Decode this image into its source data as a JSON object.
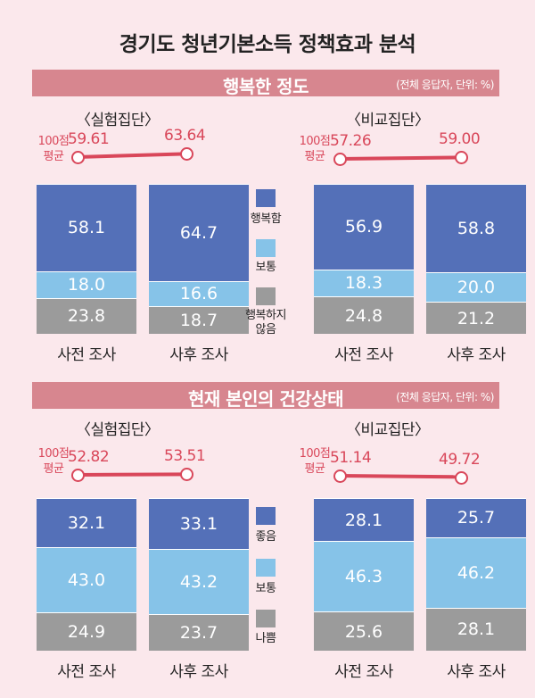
{
  "title": "경기도 청년기본소득 정책효과 분석",
  "unit": "(전체 응답자, 단위: %)",
  "avg_label_top": "100점",
  "avg_label_bottom": "평균",
  "colors": {
    "top": "#5470b8",
    "mid": "#86c3e8",
    "bottom": "#9b9b9b",
    "accent": "#d9475a"
  },
  "chart_data": [
    {
      "type": "bar",
      "title": "행복한 정도",
      "categories": [
        "사전 조사",
        "사후 조사"
      ],
      "legend": [
        "행복함",
        "보통",
        "행복하지\n않음"
      ],
      "groups": [
        {
          "name": "〈실험집단〉",
          "averages": [
            "59.61",
            "63.64"
          ],
          "series": [
            {
              "name": "행복함",
              "values": [
                "58.1",
                "64.7"
              ]
            },
            {
              "name": "보통",
              "values": [
                "18.0",
                "16.6"
              ]
            },
            {
              "name": "행복하지 않음",
              "values": [
                "23.8",
                "18.7"
              ]
            }
          ]
        },
        {
          "name": "〈비교집단〉",
          "averages": [
            "57.26",
            "59.00"
          ],
          "series": [
            {
              "name": "행복함",
              "values": [
                "56.9",
                "58.8"
              ]
            },
            {
              "name": "보통",
              "values": [
                "18.3",
                "20.0"
              ]
            },
            {
              "name": "행복하지 않음",
              "values": [
                "24.8",
                "21.2"
              ]
            }
          ]
        }
      ]
    },
    {
      "type": "bar",
      "title": "현재 본인의 건강상태",
      "categories": [
        "사전 조사",
        "사후 조사"
      ],
      "legend": [
        "좋음",
        "보통",
        "나쁨"
      ],
      "groups": [
        {
          "name": "〈실험집단〉",
          "averages": [
            "52.82",
            "53.51"
          ],
          "series": [
            {
              "name": "좋음",
              "values": [
                "32.1",
                "33.1"
              ]
            },
            {
              "name": "보통",
              "values": [
                "43.0",
                "43.2"
              ]
            },
            {
              "name": "나쁨",
              "values": [
                "24.9",
                "23.7"
              ]
            }
          ]
        },
        {
          "name": "〈비교집단〉",
          "averages": [
            "51.14",
            "49.72"
          ],
          "series": [
            {
              "name": "좋음",
              "values": [
                "28.1",
                "25.7"
              ]
            },
            {
              "name": "보통",
              "values": [
                "46.3",
                "46.2"
              ]
            },
            {
              "name": "나쁨",
              "values": [
                "25.6",
                "28.1"
              ]
            }
          ]
        }
      ]
    }
  ]
}
